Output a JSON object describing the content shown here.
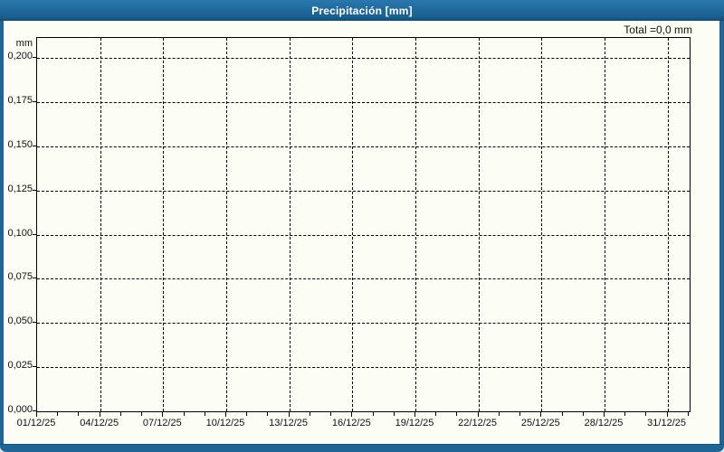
{
  "window": {
    "title": "Precipitación [mm]"
  },
  "colors": {
    "frame": "#1F6697",
    "titlebar_top": "#2978AE",
    "titlebar_bottom": "#1A5F8E",
    "content_bg": "#FCFDF5",
    "grid": "#000000",
    "text": "#111111"
  },
  "chart": {
    "total_label": "Total =0,0 mm",
    "unit_label": "mm"
  },
  "chart_data": {
    "type": "bar",
    "title": "Precipitación [mm]",
    "ylabel": "mm",
    "xlabel": "",
    "grid": "dashed",
    "legend": "none",
    "x_tick_labels": [
      "01/12/25",
      "04/12/25",
      "07/12/25",
      "10/12/25",
      "13/12/25",
      "16/12/25",
      "19/12/25",
      "22/12/25",
      "25/12/25",
      "28/12/25",
      "31/12/25"
    ],
    "x_major_step_days": 3,
    "x_minor_step_days": 1,
    "x_total_days": 31.05,
    "y_tick_values": [
      0,
      0.025,
      0.05,
      0.075,
      0.1,
      0.125,
      0.15,
      0.175,
      0.2
    ],
    "y_tick_labels": [
      "0,000",
      "0,025",
      "0,050",
      "0,075",
      "0,100",
      "0,125",
      "0,150",
      "0,175",
      "0,200"
    ],
    "ylim": [
      0,
      0.2113
    ],
    "series": [
      {
        "name": "Precipitación",
        "values": [
          0,
          0,
          0,
          0,
          0,
          0,
          0,
          0,
          0,
          0,
          0,
          0,
          0,
          0,
          0,
          0,
          0,
          0,
          0,
          0,
          0,
          0,
          0,
          0,
          0,
          0,
          0,
          0,
          0,
          0,
          0
        ]
      }
    ],
    "total_mm": 0.0
  }
}
